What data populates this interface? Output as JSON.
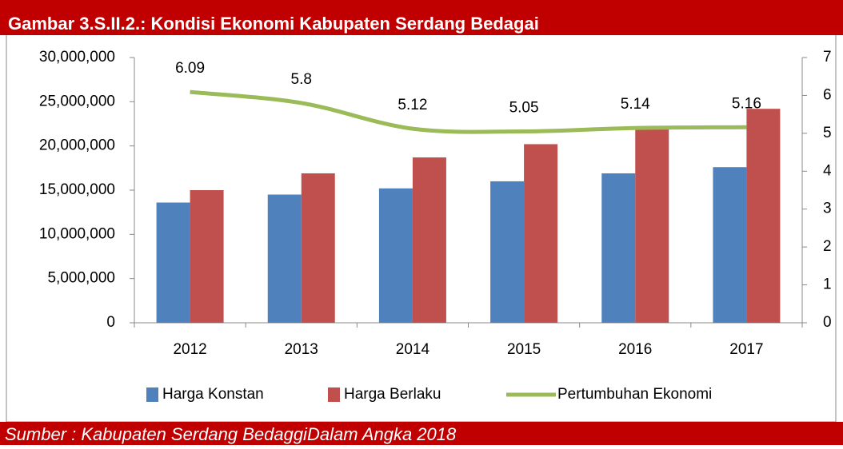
{
  "title": "Gambar 3.S.II.2.: Kondisi Ekonomi Kabupaten Serdang Bedagai",
  "source": "Sumber : Kabupaten Serdang BedaggiDalam Angka 2018",
  "chart_data": {
    "type": "bar",
    "categories": [
      "2012",
      "2013",
      "2014",
      "2015",
      "2016",
      "2017"
    ],
    "series": [
      {
        "name": "Harga Konstan",
        "color": "#4f81bd",
        "values": [
          13600000,
          14500000,
          15200000,
          16000000,
          16900000,
          17600000
        ]
      },
      {
        "name": "Harga Berlaku",
        "color": "#c0504d",
        "values": [
          15000000,
          16900000,
          18700000,
          20200000,
          22100000,
          24200000
        ]
      },
      {
        "name": "Pertumbuhan Ekonomi",
        "color": "#9bbb59",
        "type": "line",
        "axis": "y2",
        "values": [
          6.09,
          5.8,
          5.12,
          5.05,
          5.14,
          5.16
        ]
      }
    ],
    "ylim": [
      0,
      30000000
    ],
    "yticks": [
      0,
      {
        "value": 5000000,
        "label": "5,000,000"
      },
      {
        "value": 10000000,
        "label": "10,000,000"
      },
      {
        "value": 15000000,
        "label": "15,000,000"
      },
      {
        "value": 20000000,
        "label": "20,000,000"
      },
      {
        "value": 25000000,
        "label": "25,000,000"
      },
      {
        "value": 30000000,
        "label": "30,000,000"
      }
    ],
    "y2lim": [
      0,
      7
    ],
    "y2ticks": [
      0,
      1,
      2,
      3,
      4,
      5,
      6,
      7
    ],
    "legend": "bottom"
  }
}
